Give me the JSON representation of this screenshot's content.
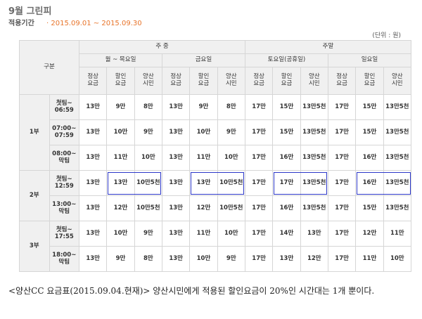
{
  "title": "9월 그린피",
  "period": {
    "label": "적용기간",
    "value": "· 2015.09.01 ~ 2015.09.30"
  },
  "unit": "(단위 : 원)",
  "header": {
    "gubun": "구분",
    "weekday": "주 중",
    "weekend": "주말",
    "days": [
      "월 ~ 목요일",
      "금요일",
      "토요일(공휴일)",
      "일요일"
    ],
    "fee_types": [
      "정상\n요금",
      "할인\n요금",
      "양산\n시민"
    ]
  },
  "parts": [
    {
      "label": "1부",
      "rows": [
        {
          "time": "첫팀~\n06:59",
          "values": [
            "13만",
            "9만",
            "8만",
            "13만",
            "9만",
            "8만",
            "17만",
            "15만",
            "13만5천",
            "17만",
            "15만",
            "13만5천"
          ]
        },
        {
          "time": "07:00~\n07:59",
          "values": [
            "13만",
            "10만",
            "9만",
            "13만",
            "10만",
            "9만",
            "17만",
            "15만",
            "13만5천",
            "17만",
            "15만",
            "13만5천"
          ]
        },
        {
          "time": "08:00~\n막팀",
          "values": [
            "13만",
            "11만",
            "10만",
            "13만",
            "11만",
            "10만",
            "17만",
            "16만",
            "13만5천",
            "17만",
            "16만",
            "13만5천"
          ]
        }
      ]
    },
    {
      "label": "2부",
      "rows": [
        {
          "time": "첫팀~\n12:59",
          "values": [
            "13만",
            "13만",
            "10만5천",
            "13만",
            "13만",
            "10만5천",
            "17만",
            "17만",
            "13만5천",
            "17만",
            "16만",
            "13만5천"
          ]
        },
        {
          "time": "13:00~\n막팀",
          "values": [
            "13만",
            "12만",
            "10만5천",
            "13만",
            "12만",
            "10만5천",
            "17만",
            "16만",
            "13만5천",
            "17만",
            "15만",
            "13만5천"
          ]
        }
      ]
    },
    {
      "label": "3부",
      "rows": [
        {
          "time": "첫팀~\n17:55",
          "values": [
            "13만",
            "10만",
            "9만",
            "13만",
            "11만",
            "10만",
            "17만",
            "14만",
            "13만",
            "17만",
            "12만",
            "11만"
          ]
        },
        {
          "time": "18:00~\n막팀",
          "values": [
            "13만",
            "9만",
            "8만",
            "13만",
            "10만",
            "9만",
            "17만",
            "13만",
            "12만",
            "17만",
            "11만",
            "10만"
          ]
        }
      ]
    }
  ],
  "caption": "<양산CC 요금표(2015.09.04.현재)> 양산시민에게 적용된 할인요금이 20%인 시간대는 1개 뿐이다.",
  "highlight_color": "#2c37c9"
}
